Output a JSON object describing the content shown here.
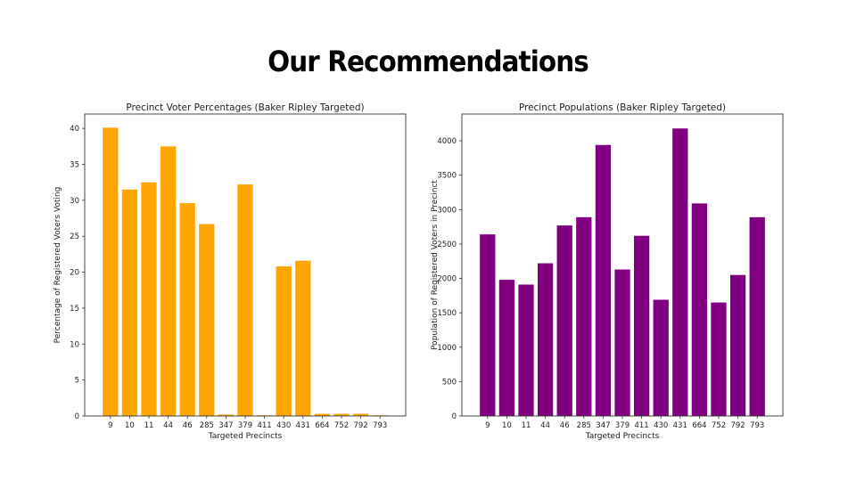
{
  "slide": {
    "title": "Our Recommendations"
  },
  "chart_data": [
    {
      "type": "bar",
      "title": "Precinct Voter Percentages (Baker Ripley Targeted)",
      "xlabel": "Targeted Precincts",
      "ylabel": "Percentage of Registered Voters Voting",
      "categories": [
        "9",
        "10",
        "11",
        "44",
        "46",
        "285",
        "347",
        "379",
        "411",
        "430",
        "431",
        "664",
        "752",
        "792",
        "793"
      ],
      "values": [
        40.1,
        31.5,
        32.5,
        37.5,
        29.6,
        26.7,
        0.2,
        32.2,
        0.1,
        20.8,
        21.6,
        0.3,
        0.3,
        0.3,
        0.1
      ],
      "ylim": [
        0,
        42
      ],
      "yticks": [
        0,
        5,
        10,
        15,
        20,
        25,
        30,
        35,
        40
      ],
      "color": "#FFA500",
      "grid": false
    },
    {
      "type": "bar",
      "title": "Precinct Populations (Baker Ripley Targeted)",
      "xlabel": "Targeted Precincts",
      "ylabel": "Population of Registered Voters in Precinct",
      "categories": [
        "9",
        "10",
        "11",
        "44",
        "46",
        "285",
        "347",
        "379",
        "411",
        "430",
        "431",
        "664",
        "752",
        "792",
        "793"
      ],
      "values": [
        2640,
        1980,
        1910,
        2220,
        2770,
        2890,
        3940,
        2130,
        2620,
        1690,
        4180,
        3090,
        1650,
        2050,
        2890
      ],
      "ylim": [
        0,
        4390
      ],
      "yticks": [
        0,
        500,
        1000,
        1500,
        2000,
        2500,
        3000,
        3500,
        4000
      ],
      "color": "#800080",
      "grid": false
    }
  ]
}
